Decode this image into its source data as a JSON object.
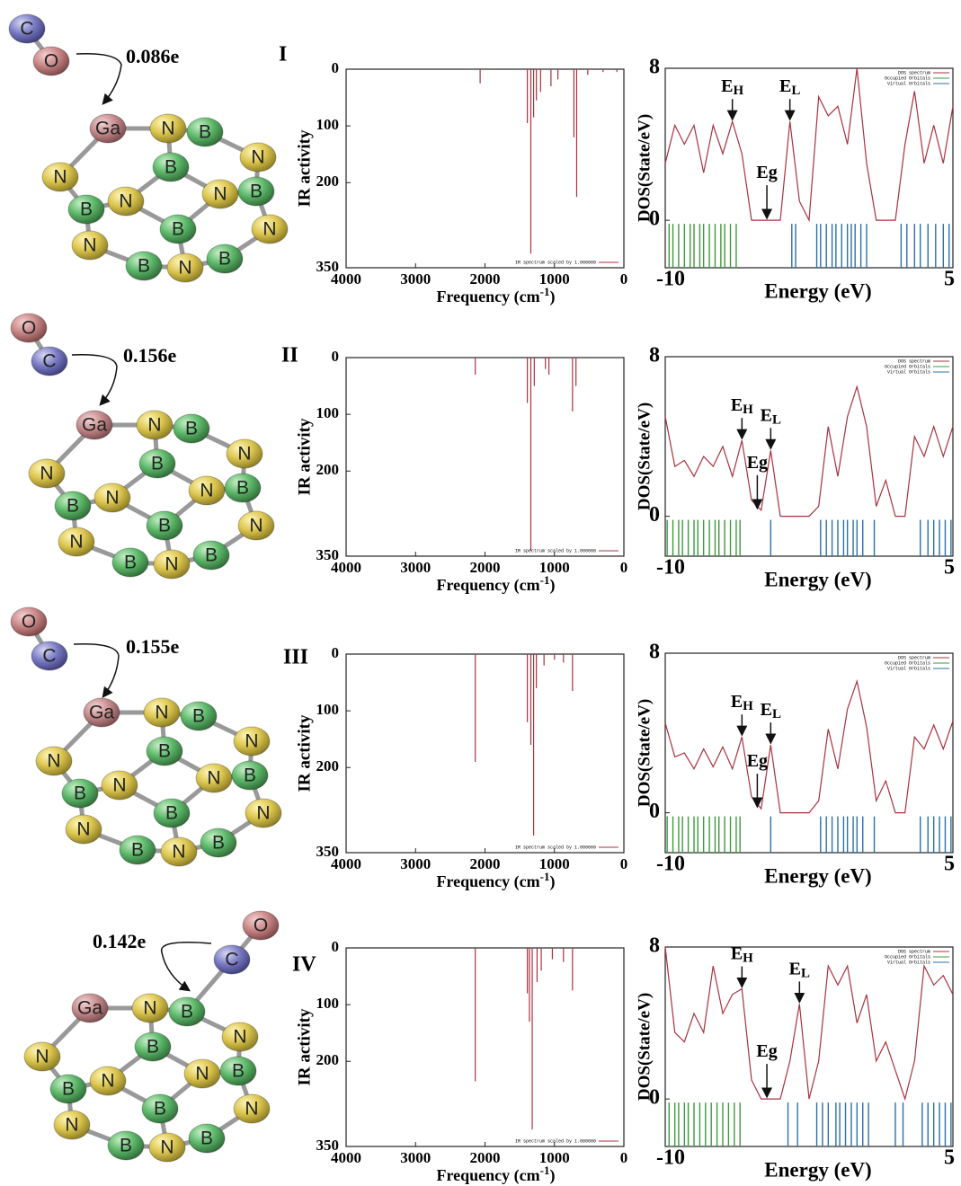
{
  "molecules": [
    {
      "label": "I",
      "charge": "0.086e",
      "atoms": [
        "C",
        "O",
        "Ga",
        "N",
        "B",
        "N",
        "B",
        "N",
        "N",
        "B",
        "N",
        "B",
        "B",
        "N",
        "N",
        "B",
        "N",
        "B"
      ]
    },
    {
      "label": "II",
      "charge": "0.156e",
      "atoms": [
        "O",
        "C",
        "Ga",
        "N",
        "B",
        "N",
        "B",
        "N",
        "N",
        "B",
        "N",
        "B",
        "B",
        "N",
        "N",
        "B",
        "N",
        "B"
      ]
    },
    {
      "label": "III",
      "charge": "0.155e",
      "atoms": [
        "O",
        "C",
        "Ga",
        "N",
        "B",
        "N",
        "B",
        "N",
        "N",
        "B",
        "N",
        "B",
        "B",
        "N",
        "N",
        "B",
        "N",
        "B"
      ]
    },
    {
      "label": "IV",
      "charge": "0.142e",
      "atoms": [
        "O",
        "C",
        "Ga",
        "N",
        "B",
        "N",
        "B",
        "N",
        "N",
        "B",
        "N",
        "B",
        "B",
        "N",
        "N",
        "B",
        "N",
        "B"
      ]
    }
  ],
  "chart_data": [
    {
      "type": "stem",
      "xlabel": "Frequency (cm",
      "xlabel_superscript": "-1",
      "xlabel_suffix": ")",
      "ylabel": "IR activity",
      "xlim": [
        4000,
        0
      ],
      "xticks": [
        4000,
        3000,
        2000,
        1000,
        0
      ],
      "ylim": [
        0,
        350
      ],
      "y_inverted": true,
      "yticks": [
        0,
        100,
        200,
        350
      ],
      "series": [
        {
          "name": "IR spectrum scaled by 1.000000",
          "color": "#a8323e",
          "x": [
            2070,
            1390,
            1340,
            1300,
            1260,
            1200,
            1050,
            950,
            720,
            680,
            520,
            300,
            100
          ],
          "values": [
            25,
            95,
            325,
            85,
            55,
            40,
            30,
            18,
            120,
            225,
            10,
            5,
            5
          ]
        }
      ]
    },
    {
      "type": "dos",
      "xlabel": "Energy (eV)",
      "ylabel": "DOS(State/eV)",
      "xlim": [
        -10,
        5
      ],
      "xticks": [
        -10,
        5
      ],
      "ylim": [
        -2.5,
        8
      ],
      "yticks": [
        0,
        8
      ],
      "x": [
        -10,
        -9.5,
        -9,
        -8.5,
        -8,
        -7.5,
        -7,
        -6.5,
        -6,
        -5.5,
        -5,
        -4.5,
        -4,
        -3.5,
        -3,
        -2.5,
        -2,
        -1.5,
        -1,
        -0.5,
        0,
        0.5,
        1,
        1.5,
        2,
        2.5,
        3,
        3.5,
        4,
        4.5,
        5
      ],
      "series": [
        {
          "name": "DOS spectrum",
          "color": "#a8323e",
          "values": [
            3,
            5,
            4,
            5,
            2.5,
            5,
            3.5,
            5.2,
            3.5,
            0,
            0,
            0,
            0,
            5.2,
            1,
            0,
            6.5,
            5.5,
            6,
            4,
            8,
            3,
            0,
            0,
            0,
            4,
            6.8,
            3,
            5,
            3,
            6
          ]
        },
        {
          "name": "Occupied Orbitals",
          "color": "#3c9a3c",
          "x": [
            -9.8,
            -9.6,
            -9.3,
            -9,
            -8.7,
            -8.5,
            -8.2,
            -8,
            -7.7,
            -7.4,
            -7.1,
            -6.9,
            -6.6,
            -6.3
          ]
        },
        {
          "name": "Virtual Orbitals",
          "color": "#2a70a8",
          "x": [
            -3.4,
            -3.2,
            -2.1,
            -1.9,
            -1.6,
            -1.3,
            -1.1,
            -0.8,
            -0.5,
            -0.3,
            -0.1,
            0.2,
            0.5,
            2.3,
            2.6,
            3,
            3.3,
            3.7,
            4.1,
            4.5,
            4.8
          ]
        }
      ],
      "annotations": [
        {
          "text": "E",
          "subscript": "H",
          "x": -6.5,
          "y": 5.2
        },
        {
          "text": "E",
          "subscript": "L",
          "x": -3.5,
          "y": 5.2
        },
        {
          "text": "Eg",
          "x": -4.7,
          "y": 0
        }
      ]
    },
    {
      "type": "stem",
      "xlabel": "Frequency (cm",
      "xlabel_superscript": "-1",
      "xlabel_suffix": ")",
      "ylabel": "IR activity",
      "xlim": [
        4000,
        0
      ],
      "xticks": [
        4000,
        3000,
        2000,
        1000,
        0
      ],
      "ylim": [
        0,
        350
      ],
      "y_inverted": true,
      "yticks": [
        0,
        100,
        200,
        350
      ],
      "series": [
        {
          "name": "IR spectrum scaled by 1.000000",
          "color": "#a8323e",
          "x": [
            2140,
            1390,
            1340,
            1290,
            1130,
            1080,
            740,
            690
          ],
          "values": [
            30,
            80,
            340,
            50,
            20,
            30,
            95,
            50
          ]
        }
      ]
    },
    {
      "type": "dos",
      "xlabel": "Energy (eV)",
      "ylabel": "DOS(State/eV)",
      "xlim": [
        -10,
        5
      ],
      "xticks": [
        -10,
        5
      ],
      "ylim": [
        -2,
        8
      ],
      "yticks": [
        0,
        8
      ],
      "x": [
        -10,
        -9.5,
        -9,
        -8.5,
        -8,
        -7.5,
        -7,
        -6.5,
        -6,
        -5.5,
        -5,
        -4.5,
        -4,
        -3.5,
        -3,
        -2.5,
        -2,
        -1.5,
        -1,
        -0.5,
        0,
        0.5,
        1,
        1.5,
        2,
        2.5,
        3,
        3.5,
        4,
        4.5,
        5
      ],
      "series": [
        {
          "name": "DOS spectrum",
          "color": "#a8323e",
          "values": [
            5,
            2.5,
            2.8,
            2,
            3,
            2.5,
            3.5,
            2,
            3.8,
            0.8,
            0.3,
            3.3,
            0,
            0,
            0,
            0,
            0.5,
            4.5,
            2,
            5,
            6.5,
            4.5,
            0.5,
            1.8,
            0,
            0,
            4,
            3,
            4.5,
            3,
            4.5
          ]
        },
        {
          "name": "Occupied Orbitals",
          "color": "#3c9a3c",
          "x": [
            -9.9,
            -9.6,
            -9.3,
            -9.1,
            -8.8,
            -8.5,
            -8.3,
            -8,
            -7.7,
            -7.4,
            -7.2,
            -6.9,
            -6.6,
            -6.3,
            -6.1
          ]
        },
        {
          "name": "Virtual Orbitals",
          "color": "#2a70a8",
          "x": [
            -4.5,
            -1.9,
            -1.6,
            -1.3,
            -1,
            -0.7,
            -0.5,
            -0.2,
            0,
            0.3,
            0.9,
            3.3,
            3.7,
            4,
            4.3,
            4.6,
            4.9
          ]
        }
      ],
      "annotations": [
        {
          "text": "E",
          "subscript": "H",
          "x": -6,
          "y": 3.8
        },
        {
          "text": "E",
          "subscript": "L",
          "x": -4.5,
          "y": 3.3
        },
        {
          "text": "Eg",
          "x": -5.2,
          "y": 0.3
        }
      ]
    },
    {
      "type": "stem",
      "xlabel": "Frequency (cm",
      "xlabel_superscript": "-1",
      "xlabel_suffix": ")",
      "ylabel": "IR activity",
      "xlim": [
        4000,
        0
      ],
      "xticks": [
        4000,
        3000,
        2000,
        1000,
        0
      ],
      "ylim": [
        0,
        350
      ],
      "y_inverted": true,
      "yticks": [
        0,
        100,
        200,
        350
      ],
      "series": [
        {
          "name": "IR spectrum scaled by 1.000000",
          "color": "#a8323e",
          "x": [
            2140,
            1390,
            1340,
            1300,
            1260,
            1150,
            1000,
            870,
            740
          ],
          "values": [
            190,
            120,
            160,
            320,
            60,
            20,
            10,
            15,
            65
          ]
        }
      ]
    },
    {
      "type": "dos",
      "xlabel": "Energy (eV)",
      "ylabel": "DOS(State/eV)",
      "xlim": [
        -10,
        5
      ],
      "xticks": [
        -10,
        5
      ],
      "ylim": [
        -2,
        8
      ],
      "yticks": [
        0,
        8
      ],
      "x": [
        -10,
        -9.5,
        -9,
        -8.5,
        -8,
        -7.5,
        -7,
        -6.5,
        -6,
        -5.5,
        -5,
        -4.5,
        -4,
        -3.5,
        -3,
        -2.5,
        -2,
        -1.5,
        -1,
        -0.5,
        0,
        0.5,
        1,
        1.5,
        2,
        2.5,
        3,
        3.5,
        4,
        4.5,
        5
      ],
      "series": [
        {
          "name": "DOS spectrum",
          "color": "#a8323e",
          "values": [
            4.5,
            2.8,
            3,
            2.2,
            3.2,
            2.3,
            3.3,
            2.2,
            3.8,
            0.8,
            0.2,
            3.4,
            0,
            0,
            0,
            0,
            0.6,
            4.2,
            2.2,
            5.2,
            6.6,
            4.3,
            0.6,
            1.6,
            0,
            0,
            3.8,
            3.2,
            4.4,
            3.2,
            4.6
          ]
        },
        {
          "name": "Occupied Orbitals",
          "color": "#3c9a3c",
          "x": [
            -9.9,
            -9.6,
            -9.3,
            -9.1,
            -8.8,
            -8.5,
            -8.3,
            -8,
            -7.7,
            -7.4,
            -7.2,
            -6.9,
            -6.6,
            -6.3,
            -6.1
          ]
        },
        {
          "name": "Virtual Orbitals",
          "color": "#2a70a8",
          "x": [
            -4.5,
            -1.9,
            -1.6,
            -1.3,
            -1,
            -0.7,
            -0.5,
            -0.2,
            0,
            0.3,
            0.9,
            3.3,
            3.7,
            4,
            4.3,
            4.6,
            4.9
          ]
        }
      ],
      "annotations": [
        {
          "text": "E",
          "subscript": "H",
          "x": -6,
          "y": 3.8
        },
        {
          "text": "E",
          "subscript": "L",
          "x": -4.5,
          "y": 3.4
        },
        {
          "text": "Eg",
          "x": -5.2,
          "y": 0.2
        }
      ]
    },
    {
      "type": "stem",
      "xlabel": "Frequency (cm",
      "xlabel_superscript": "-1",
      "xlabel_suffix": ")",
      "ylabel": "IR activity",
      "xlim": [
        4000,
        0
      ],
      "xticks": [
        4000,
        3000,
        2000,
        1000,
        0
      ],
      "ylim": [
        0,
        350
      ],
      "y_inverted": true,
      "yticks": [
        0,
        100,
        200,
        350
      ],
      "series": [
        {
          "name": "IR spectrum scaled by 1.000000",
          "color": "#a8323e",
          "x": [
            2140,
            1390,
            1360,
            1320,
            1250,
            1190,
            1030,
            870,
            740
          ],
          "values": [
            235,
            80,
            130,
            320,
            60,
            40,
            20,
            25,
            75
          ]
        }
      ]
    },
    {
      "type": "dos",
      "xlabel": "Energy (eV)",
      "ylabel": "DOS(State/eV)",
      "xlim": [
        -10,
        5
      ],
      "xticks": [
        -10,
        5
      ],
      "ylim": [
        -2.5,
        8
      ],
      "yticks": [
        0,
        8
      ],
      "x": [
        -10,
        -9.5,
        -9,
        -8.5,
        -8,
        -7.5,
        -7,
        -6.5,
        -6,
        -5.5,
        -5,
        -4.5,
        -4,
        -3.5,
        -3,
        -2.5,
        -2,
        -1.5,
        -1,
        -0.5,
        0,
        0.5,
        1,
        1.5,
        2,
        2.5,
        3,
        3.5,
        4,
        4.5,
        5
      ],
      "series": [
        {
          "name": "DOS spectrum",
          "color": "#a8323e",
          "values": [
            8,
            3.5,
            3,
            4.5,
            3.5,
            7,
            4.5,
            5.5,
            5.8,
            1,
            0,
            0,
            0,
            2,
            5,
            0,
            2,
            7,
            6,
            7,
            4,
            5.5,
            2,
            3,
            1.5,
            0,
            2,
            7,
            6,
            6.5,
            5.5
          ]
        },
        {
          "name": "Occupied Orbitals",
          "color": "#3c9a3c",
          "x": [
            -9.8,
            -9.5,
            -9.3,
            -9,
            -8.8,
            -8.5,
            -8.2,
            -7.9,
            -7.6,
            -7.3,
            -7,
            -6.7,
            -6.4,
            -6.1
          ]
        },
        {
          "name": "Virtual Orbitals",
          "color": "#2a70a8",
          "x": [
            -3.6,
            -3.1,
            -2.1,
            -1.8,
            -1.5,
            -1.1,
            -0.9,
            -0.6,
            -0.3,
            0,
            0.3,
            0.6,
            2,
            2.4,
            3.4,
            3.7,
            4,
            4.3,
            4.6,
            4.9
          ]
        }
      ],
      "annotations": [
        {
          "text": "E",
          "subscript": "H",
          "x": -6,
          "y": 5.8
        },
        {
          "text": "E",
          "subscript": "L",
          "x": -3,
          "y": 5
        },
        {
          "text": "Eg",
          "x": -4.7,
          "y": 0
        }
      ]
    }
  ]
}
